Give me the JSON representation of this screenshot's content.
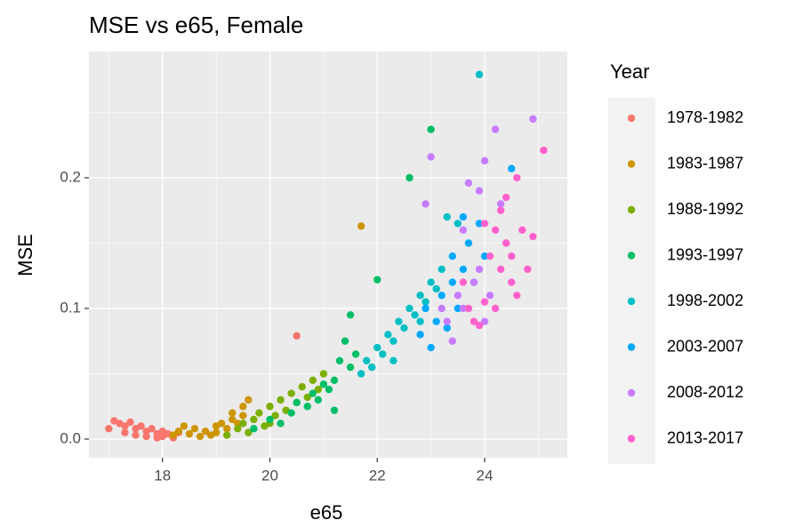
{
  "chart_data": {
    "type": "scatter",
    "title": "MSE vs e65, Female",
    "x_label": "e65",
    "y_label": "MSE",
    "legend_title": "Year",
    "legend_position": "right",
    "grid": true,
    "xlim": [
      16.63,
      25.54
    ],
    "xticks": [
      18,
      20,
      22,
      24
    ],
    "xminor": [
      17,
      19,
      21,
      23,
      25
    ],
    "ylim": [
      -0.0143,
      0.2966
    ],
    "yticks": [
      {
        "value": 0.0,
        "label": "0.0"
      },
      0.1,
      0.2
    ],
    "yminor": [
      0.05,
      0.15,
      0.25
    ],
    "series": [
      {
        "name": "1978-1982",
        "color": "#F8766D",
        "x": [
          17.0,
          17.1,
          17.2,
          17.3,
          17.3,
          17.4,
          17.5,
          17.5,
          17.6,
          17.7,
          17.7,
          17.8,
          17.9,
          17.9,
          18.0,
          18.0,
          18.1,
          18.2,
          18.3,
          20.5
        ],
        "y": [
          0.008,
          0.014,
          0.012,
          0.01,
          0.005,
          0.013,
          0.008,
          0.003,
          0.01,
          0.006,
          0.002,
          0.008,
          0.004,
          0.001,
          0.006,
          0.002,
          0.004,
          0.001,
          0.005,
          0.079
        ]
      },
      {
        "name": "1983-1987",
        "color": "#CD9600",
        "x": [
          18.2,
          18.3,
          18.4,
          18.5,
          18.6,
          18.7,
          18.8,
          18.9,
          19.0,
          19.0,
          19.1,
          19.2,
          19.3,
          19.3,
          19.4,
          19.5,
          19.5,
          19.6,
          21.7
        ],
        "y": [
          0.003,
          0.006,
          0.01,
          0.004,
          0.008,
          0.002,
          0.006,
          0.003,
          0.01,
          0.005,
          0.012,
          0.008,
          0.015,
          0.02,
          0.012,
          0.025,
          0.018,
          0.03,
          0.163
        ]
      },
      {
        "name": "1988-1992",
        "color": "#7CAE00",
        "x": [
          19.2,
          19.4,
          19.5,
          19.7,
          19.8,
          19.9,
          20.0,
          20.1,
          20.2,
          20.3,
          20.4,
          20.5,
          20.6,
          20.7,
          20.8,
          20.9,
          21.0,
          19.6,
          20.0
        ],
        "y": [
          0.003,
          0.008,
          0.012,
          0.015,
          0.02,
          0.01,
          0.025,
          0.018,
          0.03,
          0.022,
          0.035,
          0.028,
          0.04,
          0.032,
          0.045,
          0.038,
          0.05,
          0.005,
          0.012
        ]
      },
      {
        "name": "1993-1997",
        "color": "#00BE67",
        "x": [
          19.7,
          20.0,
          20.2,
          20.4,
          20.5,
          20.7,
          20.8,
          20.9,
          21.0,
          21.1,
          21.2,
          21.2,
          21.3,
          21.4,
          21.5,
          21.5,
          21.6,
          22.0,
          22.6,
          23.0
        ],
        "y": [
          0.008,
          0.015,
          0.012,
          0.02,
          0.028,
          0.025,
          0.035,
          0.03,
          0.042,
          0.038,
          0.045,
          0.022,
          0.06,
          0.075,
          0.055,
          0.095,
          0.065,
          0.122,
          0.2,
          0.237
        ]
      },
      {
        "name": "1998-2002",
        "color": "#00BFC4",
        "x": [
          21.7,
          21.8,
          21.9,
          22.0,
          22.1,
          22.2,
          22.3,
          22.4,
          22.5,
          22.6,
          22.7,
          22.8,
          22.9,
          23.0,
          23.1,
          23.2,
          22.3,
          22.8,
          23.3,
          23.5,
          23.9
        ],
        "y": [
          0.05,
          0.06,
          0.055,
          0.07,
          0.065,
          0.08,
          0.075,
          0.09,
          0.085,
          0.1,
          0.095,
          0.11,
          0.105,
          0.12,
          0.115,
          0.13,
          0.06,
          0.09,
          0.17,
          0.165,
          0.279
        ]
      },
      {
        "name": "2003-2007",
        "color": "#00A9FF",
        "x": [
          22.8,
          22.9,
          23.0,
          23.1,
          23.2,
          23.3,
          23.4,
          23.4,
          23.5,
          23.6,
          23.6,
          23.7,
          23.8,
          23.9,
          24.0,
          24.5
        ],
        "y": [
          0.08,
          0.1,
          0.07,
          0.09,
          0.11,
          0.085,
          0.12,
          0.14,
          0.1,
          0.13,
          0.17,
          0.15,
          0.12,
          0.165,
          0.14,
          0.207
        ]
      },
      {
        "name": "2008-2012",
        "color": "#C77CFF",
        "x": [
          22.9,
          23.0,
          23.2,
          23.3,
          23.5,
          23.6,
          23.7,
          23.8,
          23.9,
          24.0,
          24.0,
          24.1,
          24.2,
          24.3,
          23.6,
          23.9,
          24.9,
          23.4
        ],
        "y": [
          0.18,
          0.216,
          0.1,
          0.09,
          0.11,
          0.1,
          0.196,
          0.12,
          0.13,
          0.09,
          0.213,
          0.11,
          0.237,
          0.18,
          0.16,
          0.19,
          0.245,
          0.075
        ]
      },
      {
        "name": "2013-2017",
        "color": "#FF61CC",
        "x": [
          23.6,
          23.7,
          23.8,
          23.9,
          24.0,
          24.1,
          24.2,
          24.2,
          24.3,
          24.3,
          24.4,
          24.4,
          24.5,
          24.5,
          24.6,
          24.6,
          24.7,
          24.8,
          24.9,
          25.1,
          24.0
        ],
        "y": [
          0.12,
          0.1,
          0.09,
          0.087,
          0.105,
          0.14,
          0.16,
          0.1,
          0.175,
          0.13,
          0.185,
          0.15,
          0.12,
          0.14,
          0.2,
          0.11,
          0.16,
          0.13,
          0.155,
          0.221,
          0.165
        ]
      }
    ]
  }
}
